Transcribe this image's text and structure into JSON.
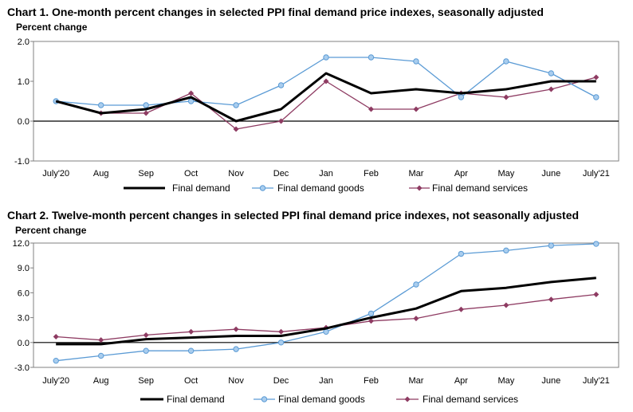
{
  "colors": {
    "final_demand": "#000000",
    "goods": "#5B9BD5",
    "services": "#8E3B62",
    "zero_line": "#000000",
    "frame": "#808080"
  },
  "chart_data": [
    {
      "type": "line",
      "title": "Chart 1. One-month percent changes in selected PPI final demand price indexes, seasonally adjusted",
      "ylabel": "Percent change",
      "xlabel": "",
      "categories": [
        "July'20",
        "Aug",
        "Sep",
        "Oct",
        "Nov",
        "Dec",
        "Jan",
        "Feb",
        "Mar",
        "Apr",
        "May",
        "June",
        "July'21"
      ],
      "ylim": [
        -1.0,
        2.0
      ],
      "yticks": [
        "2.0",
        "1.0",
        "0.0",
        "-1.0"
      ],
      "ytick_values": [
        2.0,
        1.0,
        0.0,
        -1.0
      ],
      "grid": false,
      "legend_position": "bottom",
      "series": [
        {
          "name": "Final demand",
          "values": [
            0.5,
            0.2,
            0.3,
            0.6,
            0.0,
            0.3,
            1.2,
            0.7,
            0.8,
            0.7,
            0.8,
            1.0,
            1.0
          ]
        },
        {
          "name": "Final demand goods",
          "values": [
            0.5,
            0.4,
            0.4,
            0.5,
            0.4,
            0.9,
            1.6,
            1.6,
            1.5,
            0.6,
            1.5,
            1.2,
            0.6
          ]
        },
        {
          "name": "Final demand services",
          "values": [
            0.5,
            0.2,
            0.2,
            0.7,
            -0.2,
            0.0,
            1.0,
            0.3,
            0.3,
            0.7,
            0.6,
            0.8,
            1.1
          ]
        }
      ]
    },
    {
      "type": "line",
      "title": "Chart 2. Twelve-month percent changes in selected PPI final demand price indexes, not seasonally adjusted",
      "ylabel": "Percent change",
      "xlabel": "",
      "categories": [
        "July'20",
        "Aug",
        "Sep",
        "Oct",
        "Nov",
        "Dec",
        "Jan",
        "Feb",
        "Mar",
        "Apr",
        "May",
        "June",
        "July'21"
      ],
      "ylim": [
        -3.0,
        12.0
      ],
      "yticks": [
        "12.0",
        "9.0",
        "6.0",
        "3.0",
        "0.0",
        "-3.0"
      ],
      "ytick_values": [
        12.0,
        9.0,
        6.0,
        3.0,
        0.0,
        -3.0
      ],
      "grid": false,
      "legend_position": "bottom",
      "series": [
        {
          "name": "Final demand",
          "values": [
            -0.2,
            -0.2,
            0.4,
            0.6,
            0.8,
            0.8,
            1.7,
            3.0,
            4.1,
            6.2,
            6.6,
            7.3,
            7.8
          ]
        },
        {
          "name": "Final demand goods",
          "values": [
            -2.2,
            -1.6,
            -1.0,
            -1.0,
            -0.8,
            0.0,
            1.3,
            3.5,
            7.0,
            10.7,
            11.1,
            11.7,
            11.9
          ]
        },
        {
          "name": "Final demand services",
          "values": [
            0.7,
            0.3,
            0.9,
            1.3,
            1.6,
            1.3,
            1.8,
            2.6,
            2.9,
            4.0,
            4.5,
            5.2,
            5.8
          ]
        }
      ]
    }
  ]
}
